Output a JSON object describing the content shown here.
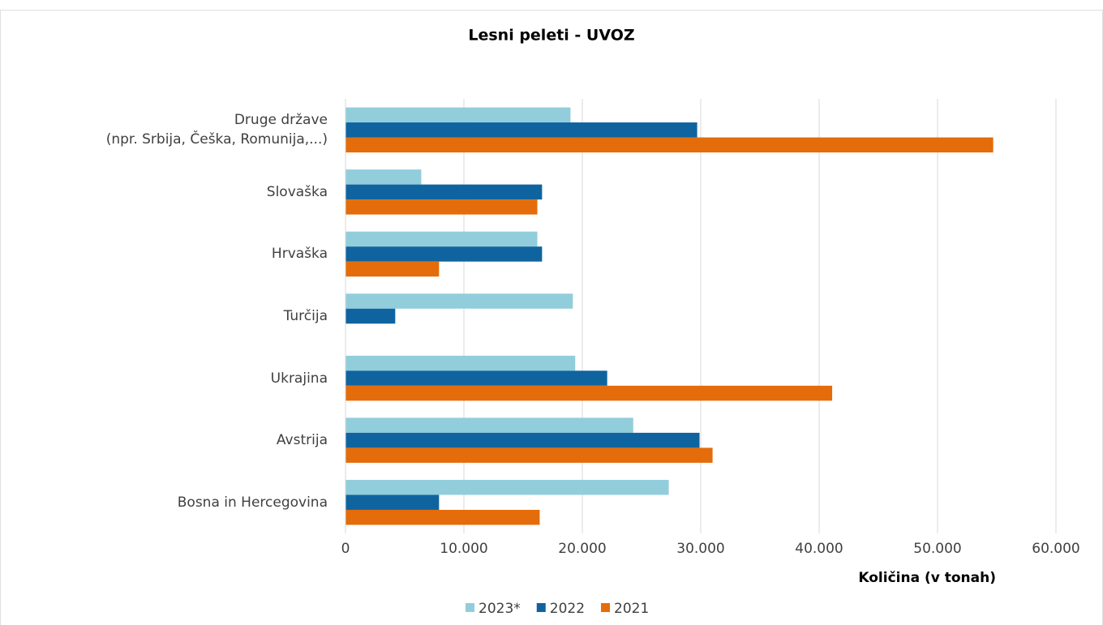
{
  "chart_data": {
    "type": "barh",
    "title": "Lesni peleti - UVOZ",
    "xlabel": "Količina (v tonah)",
    "categories": [
      "Druge države\n(npr. Srbija, Češka, Romunija,...)",
      "Slovaška",
      "Hrvaška",
      "Turčija",
      "Ukrajina",
      "Avstrija",
      "Bosna in Hercegovina"
    ],
    "series": [
      {
        "name": "2023*",
        "color": "#92cddc",
        "values": [
          19000,
          6400,
          16200,
          19200,
          19400,
          24300,
          27300
        ]
      },
      {
        "name": "2022",
        "color": "#0f64a0",
        "values": [
          29700,
          16600,
          16600,
          4200,
          22100,
          29900,
          7900
        ]
      },
      {
        "name": "2021",
        "color": "#e46c0a",
        "values": [
          54700,
          16200,
          7900,
          null,
          41100,
          31000,
          16400
        ]
      }
    ],
    "xlim": [
      0,
      60000
    ],
    "xticks": [
      0,
      {
        "value": 10000,
        "label": "10.000"
      },
      {
        "value": 20000,
        "label": "20.000"
      },
      {
        "value": 30000,
        "label": "30.000"
      },
      {
        "value": 40000,
        "label": "40.000"
      },
      {
        "value": 50000,
        "label": "50.000"
      },
      {
        "value": 60000,
        "label": "60.000"
      }
    ],
    "grid": true,
    "legend": "bottom"
  }
}
